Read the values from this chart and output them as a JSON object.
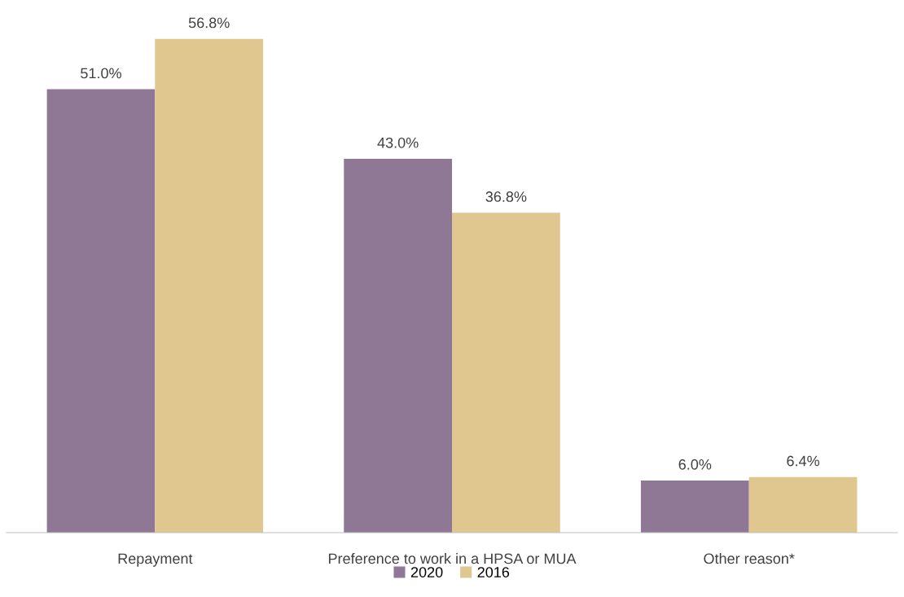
{
  "chart_data": {
    "type": "bar",
    "categories": [
      "Repayment",
      "Preference to work in a HPSA or MUA",
      "Other reason*"
    ],
    "series": [
      {
        "name": "2020",
        "color": "#8e7896",
        "values": [
          51.0,
          43.0,
          6.0
        ],
        "value_labels": [
          "51.0%",
          "43.0%",
          "6.0%"
        ]
      },
      {
        "name": "2016",
        "color": "#e0c68f",
        "values": [
          56.8,
          36.8,
          6.4
        ],
        "value_labels": [
          "56.8%",
          "36.8%",
          "6.4%"
        ]
      }
    ],
    "legend": "bottom",
    "grid": false,
    "tick_labels": "x"
  }
}
